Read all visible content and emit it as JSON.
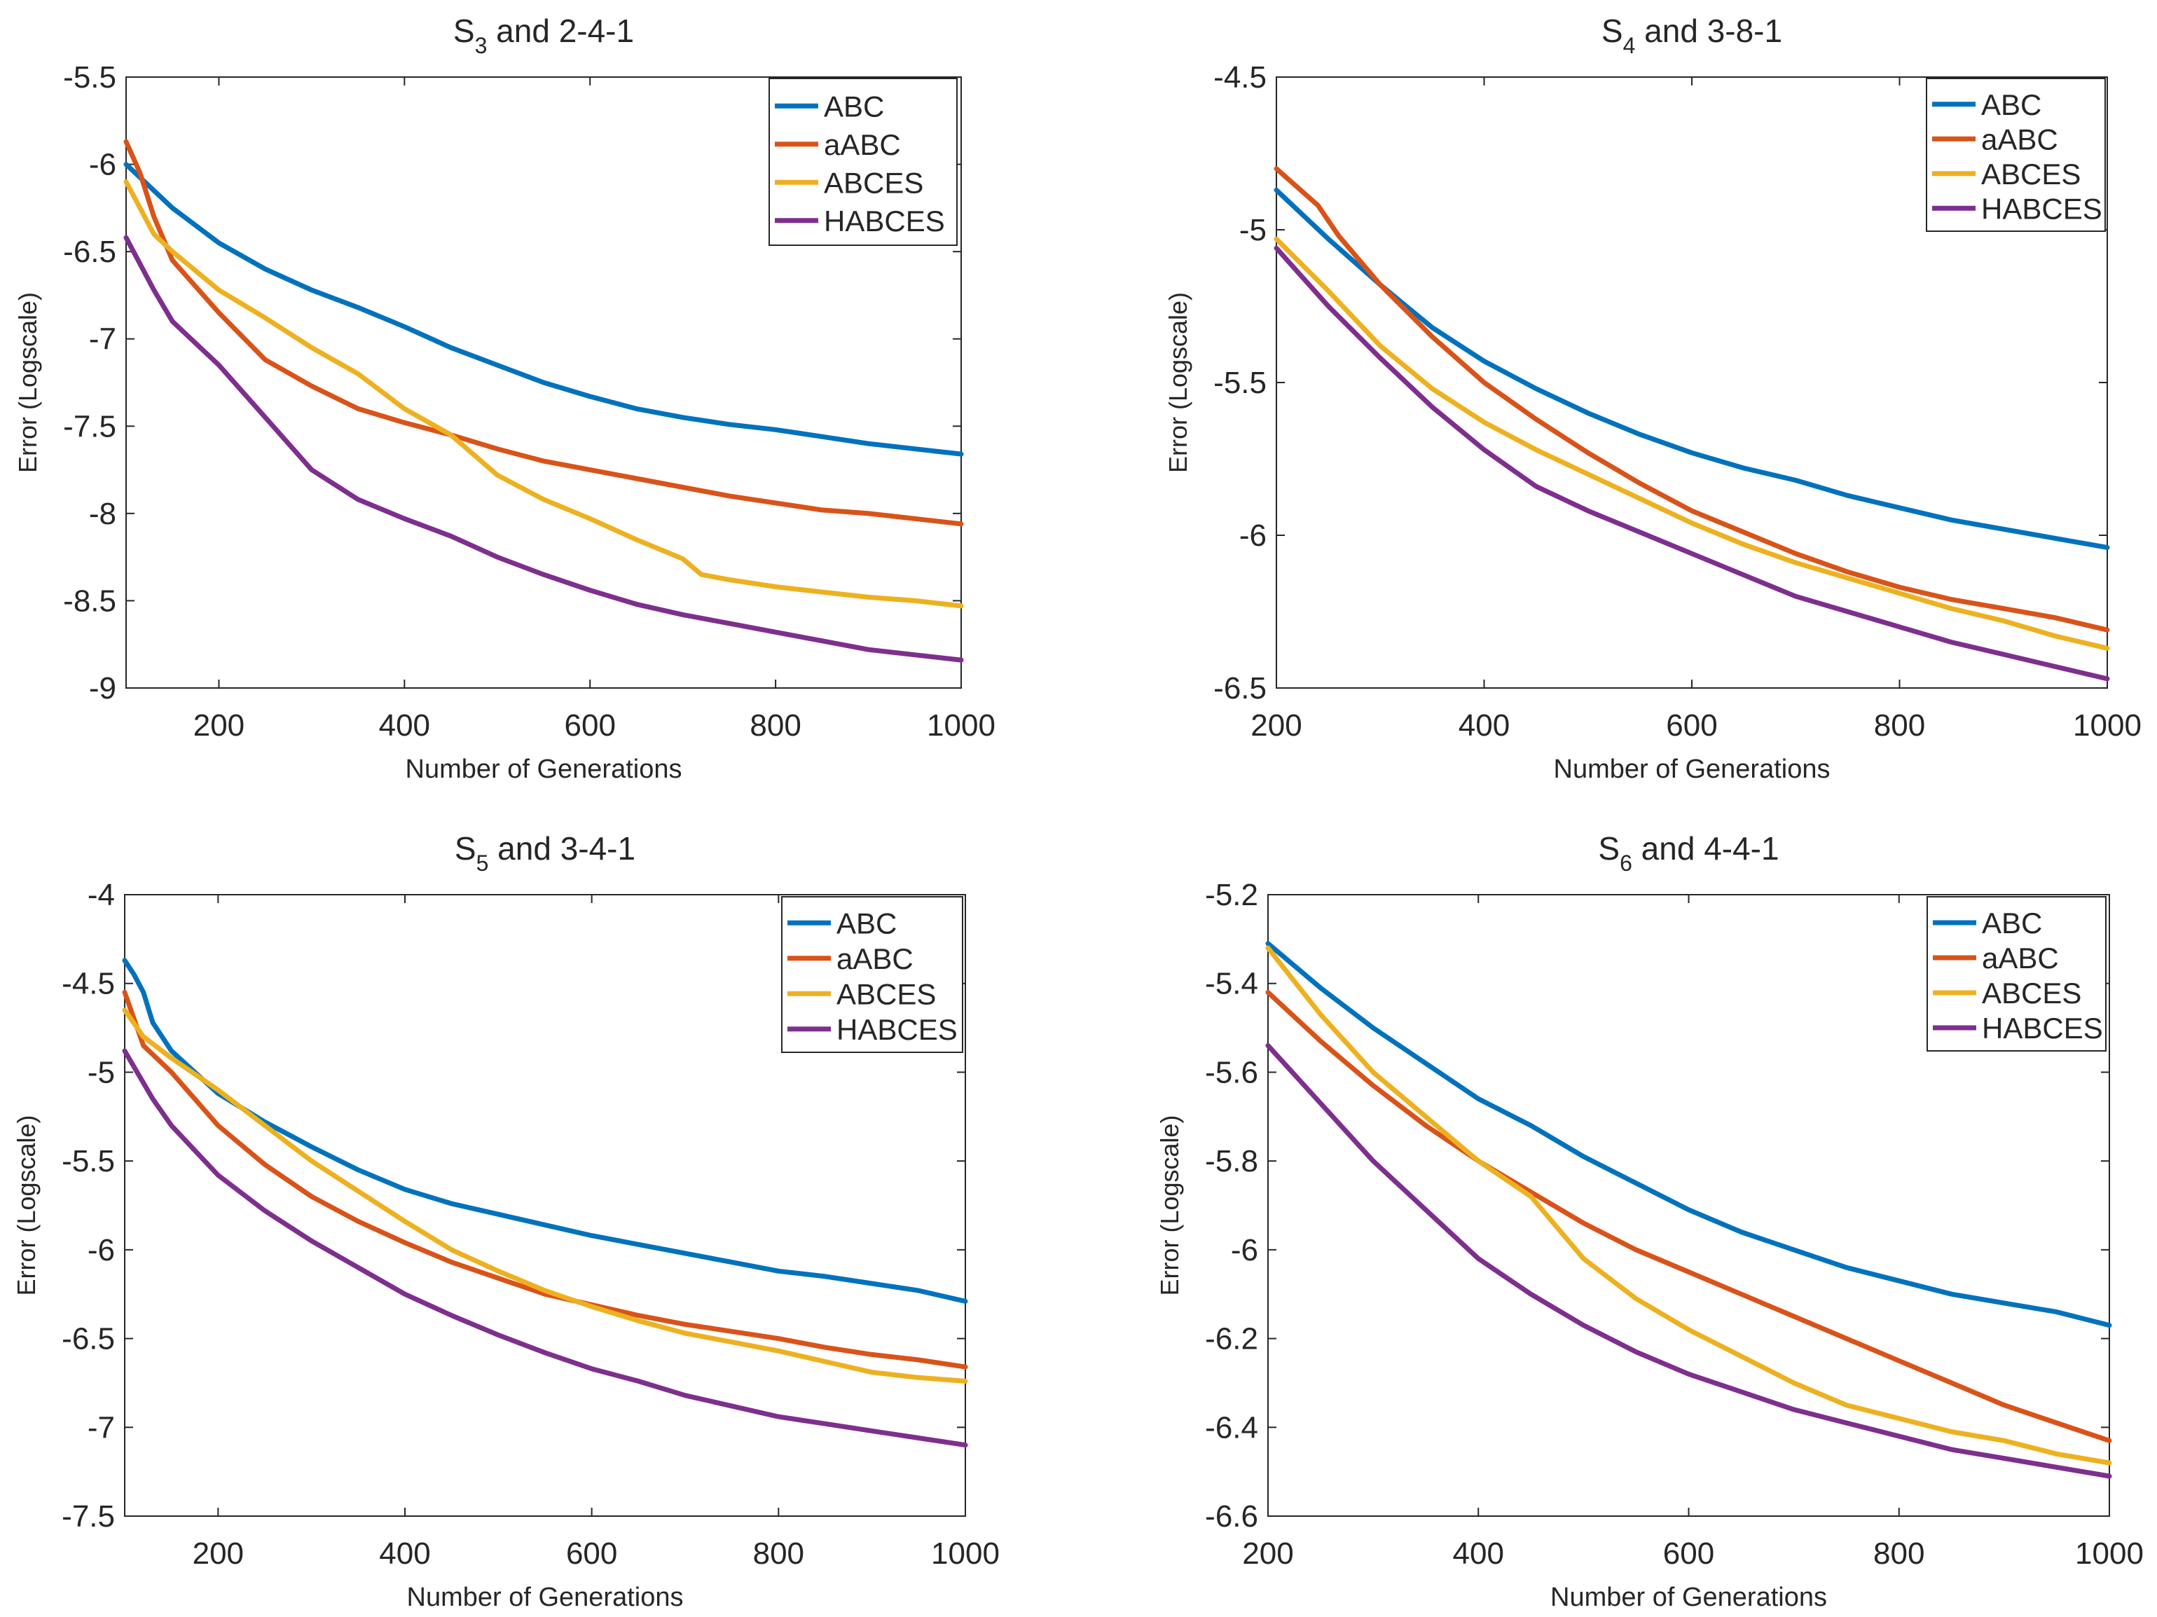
{
  "figure": {
    "description_free": true
  },
  "chart_data": [
    {
      "type": "line",
      "title": "S3 and 2-4-1",
      "title_main": "S",
      "title_sub": "3",
      "title_rest": " and 2-4-1",
      "xlabel": "Number of Generations",
      "ylabel": "Error (Logscale)",
      "xlim": [
        100,
        1000
      ],
      "ylim": [
        -9,
        -5.5
      ],
      "xticks": [
        200,
        400,
        600,
        800,
        1000
      ],
      "yticks": [
        -9,
        -8.5,
        -8,
        -7.5,
        -7,
        -6.5,
        -6,
        -5.5
      ],
      "xtick_labels": [
        "200",
        "400",
        "600",
        "800",
        "1000"
      ],
      "ytick_labels": [
        "-9",
        "-8.5",
        "-8",
        "-7.5",
        "-7",
        "-6.5",
        "-6",
        "-5.5"
      ],
      "legend_position": "top-right",
      "series": [
        {
          "name": "ABC",
          "color": "#0072BD",
          "x": [
            100,
            130,
            150,
            200,
            250,
            300,
            350,
            400,
            450,
            500,
            550,
            600,
            650,
            700,
            750,
            800,
            850,
            900,
            950,
            1000
          ],
          "y": [
            -6.0,
            -6.15,
            -6.25,
            -6.45,
            -6.6,
            -6.72,
            -6.82,
            -6.93,
            -7.05,
            -7.15,
            -7.25,
            -7.33,
            -7.4,
            -7.45,
            -7.49,
            -7.52,
            -7.56,
            -7.6,
            -7.63,
            -7.66
          ]
        },
        {
          "name": "aABC",
          "color": "#D95319",
          "x": [
            100,
            115,
            130,
            150,
            200,
            250,
            300,
            350,
            400,
            450,
            500,
            550,
            600,
            650,
            700,
            750,
            800,
            850,
            900,
            950,
            1000
          ],
          "y": [
            -5.87,
            -6.05,
            -6.3,
            -6.55,
            -6.85,
            -7.12,
            -7.27,
            -7.4,
            -7.48,
            -7.55,
            -7.63,
            -7.7,
            -7.75,
            -7.8,
            -7.85,
            -7.9,
            -7.94,
            -7.98,
            -8.0,
            -8.03,
            -8.06
          ]
        },
        {
          "name": "ABCES",
          "color": "#EDB120",
          "x": [
            100,
            130,
            150,
            200,
            250,
            300,
            350,
            400,
            450,
            500,
            550,
            600,
            650,
            700,
            720,
            750,
            800,
            850,
            900,
            950,
            1000
          ],
          "y": [
            -6.1,
            -6.4,
            -6.5,
            -6.72,
            -6.88,
            -7.05,
            -7.2,
            -7.4,
            -7.55,
            -7.78,
            -7.92,
            -8.03,
            -8.15,
            -8.26,
            -8.35,
            -8.38,
            -8.42,
            -8.45,
            -8.48,
            -8.5,
            -8.53
          ]
        },
        {
          "name": "HABCES",
          "color": "#7E2F8E",
          "x": [
            100,
            130,
            150,
            200,
            250,
            300,
            350,
            400,
            450,
            500,
            550,
            600,
            650,
            700,
            750,
            800,
            850,
            900,
            950,
            1000
          ],
          "y": [
            -6.42,
            -6.72,
            -6.9,
            -7.15,
            -7.45,
            -7.75,
            -7.92,
            -8.03,
            -8.13,
            -8.25,
            -8.35,
            -8.44,
            -8.52,
            -8.58,
            -8.63,
            -8.68,
            -8.73,
            -8.78,
            -8.81,
            -8.84
          ]
        }
      ]
    },
    {
      "type": "line",
      "title": "S4 and 3-8-1",
      "title_main": "S",
      "title_sub": "4",
      "title_rest": " and 3-8-1",
      "xlabel": "Number of Generations",
      "ylabel": "Error (Logscale)",
      "xlim": [
        200,
        1000
      ],
      "ylim": [
        -6.5,
        -4.5
      ],
      "xticks": [
        200,
        400,
        600,
        800,
        1000
      ],
      "yticks": [
        -6.5,
        -6,
        -5.5,
        -5,
        -4.5
      ],
      "xtick_labels": [
        "200",
        "400",
        "600",
        "800",
        "1000"
      ],
      "ytick_labels": [
        "-6.5",
        "-6",
        "-5.5",
        "-5",
        "-4.5"
      ],
      "legend_position": "top-right",
      "series": [
        {
          "name": "ABC",
          "color": "#0072BD",
          "x": [
            200,
            250,
            300,
            350,
            400,
            450,
            500,
            550,
            600,
            650,
            700,
            750,
            800,
            850,
            900,
            950,
            1000
          ],
          "y": [
            -4.87,
            -5.03,
            -5.18,
            -5.32,
            -5.43,
            -5.52,
            -5.6,
            -5.67,
            -5.73,
            -5.78,
            -5.82,
            -5.87,
            -5.91,
            -5.95,
            -5.98,
            -6.01,
            -6.04
          ]
        },
        {
          "name": "aABC",
          "color": "#D95319",
          "x": [
            200,
            220,
            240,
            260,
            300,
            350,
            400,
            450,
            500,
            550,
            600,
            650,
            700,
            750,
            800,
            850,
            900,
            950,
            1000
          ],
          "y": [
            -4.8,
            -4.86,
            -4.92,
            -5.02,
            -5.18,
            -5.35,
            -5.5,
            -5.62,
            -5.73,
            -5.83,
            -5.92,
            -5.99,
            -6.06,
            -6.12,
            -6.17,
            -6.21,
            -6.24,
            -6.27,
            -6.31
          ]
        },
        {
          "name": "ABCES",
          "color": "#EDB120",
          "x": [
            200,
            250,
            300,
            350,
            400,
            450,
            500,
            550,
            600,
            650,
            700,
            750,
            800,
            850,
            900,
            950,
            1000
          ],
          "y": [
            -5.03,
            -5.2,
            -5.38,
            -5.52,
            -5.63,
            -5.72,
            -5.8,
            -5.88,
            -5.96,
            -6.03,
            -6.09,
            -6.14,
            -6.19,
            -6.24,
            -6.28,
            -6.33,
            -6.37
          ]
        },
        {
          "name": "HABCES",
          "color": "#7E2F8E",
          "x": [
            200,
            250,
            300,
            350,
            400,
            450,
            500,
            550,
            600,
            650,
            700,
            750,
            800,
            850,
            900,
            950,
            1000
          ],
          "y": [
            -5.06,
            -5.25,
            -5.42,
            -5.58,
            -5.72,
            -5.84,
            -5.92,
            -5.99,
            -6.06,
            -6.13,
            -6.2,
            -6.25,
            -6.3,
            -6.35,
            -6.39,
            -6.43,
            -6.47
          ]
        }
      ]
    },
    {
      "type": "line",
      "title": "S5 and 3-4-1",
      "title_main": "S",
      "title_sub": "5",
      "title_rest": " and 3-4-1",
      "xlabel": "Number of Generations",
      "ylabel": "Error (Logscale)",
      "xlim": [
        100,
        1000
      ],
      "ylim": [
        -7.5,
        -4
      ],
      "xticks": [
        200,
        400,
        600,
        800,
        1000
      ],
      "yticks": [
        -7.5,
        -7,
        -6.5,
        -6,
        -5.5,
        -5,
        -4.5,
        -4
      ],
      "xtick_labels": [
        "200",
        "400",
        "600",
        "800",
        "1000"
      ],
      "ytick_labels": [
        "-7.5",
        "-7",
        "-6.5",
        "-6",
        "-5.5",
        "-5",
        "-4.5",
        "-4"
      ],
      "legend_position": "top-right",
      "series": [
        {
          "name": "ABC",
          "color": "#0072BD",
          "x": [
            100,
            110,
            120,
            130,
            150,
            200,
            250,
            300,
            350,
            400,
            450,
            500,
            550,
            600,
            650,
            700,
            750,
            800,
            850,
            900,
            950,
            1000
          ],
          "y": [
            -4.37,
            -4.45,
            -4.55,
            -4.72,
            -4.88,
            -5.12,
            -5.28,
            -5.42,
            -5.55,
            -5.66,
            -5.74,
            -5.8,
            -5.86,
            -5.92,
            -5.97,
            -6.02,
            -6.07,
            -6.12,
            -6.15,
            -6.19,
            -6.23,
            -6.29
          ]
        },
        {
          "name": "aABC",
          "color": "#D95319",
          "x": [
            100,
            120,
            150,
            200,
            250,
            300,
            350,
            400,
            450,
            500,
            550,
            600,
            650,
            700,
            750,
            800,
            850,
            900,
            950,
            1000
          ],
          "y": [
            -4.55,
            -4.85,
            -5.0,
            -5.3,
            -5.52,
            -5.7,
            -5.84,
            -5.96,
            -6.07,
            -6.16,
            -6.25,
            -6.31,
            -6.37,
            -6.42,
            -6.46,
            -6.5,
            -6.55,
            -6.59,
            -6.62,
            -6.66
          ]
        },
        {
          "name": "ABCES",
          "color": "#EDB120",
          "x": [
            100,
            120,
            150,
            200,
            250,
            300,
            350,
            400,
            450,
            500,
            550,
            600,
            650,
            700,
            750,
            800,
            850,
            900,
            950,
            1000
          ],
          "y": [
            -4.65,
            -4.8,
            -4.92,
            -5.1,
            -5.3,
            -5.5,
            -5.67,
            -5.84,
            -6.0,
            -6.12,
            -6.23,
            -6.32,
            -6.4,
            -6.47,
            -6.52,
            -6.57,
            -6.63,
            -6.69,
            -6.72,
            -6.74
          ]
        },
        {
          "name": "HABCES",
          "color": "#7E2F8E",
          "x": [
            100,
            130,
            150,
            200,
            250,
            300,
            350,
            400,
            450,
            500,
            550,
            600,
            650,
            700,
            750,
            800,
            850,
            900,
            950,
            1000
          ],
          "y": [
            -4.88,
            -5.15,
            -5.3,
            -5.58,
            -5.78,
            -5.95,
            -6.1,
            -6.25,
            -6.37,
            -6.48,
            -6.58,
            -6.67,
            -6.74,
            -6.82,
            -6.88,
            -6.94,
            -6.98,
            -7.02,
            -7.06,
            -7.1
          ]
        }
      ]
    },
    {
      "type": "line",
      "title": "S6 and 4-4-1",
      "title_main": "S",
      "title_sub": "6",
      "title_rest": " and 4-4-1",
      "xlabel": "Number of Generations",
      "ylabel": "Error (Logscale)",
      "xlim": [
        200,
        1000
      ],
      "ylim": [
        -6.6,
        -5.2
      ],
      "xticks": [
        200,
        400,
        600,
        800,
        1000
      ],
      "yticks": [
        -6.6,
        -6.4,
        -6.2,
        -6,
        -5.8,
        -5.6,
        -5.4,
        -5.2
      ],
      "xtick_labels": [
        "200",
        "400",
        "600",
        "800",
        "1000"
      ],
      "ytick_labels": [
        "-6.6",
        "-6.4",
        "-6.2",
        "-6",
        "-5.8",
        "-5.6",
        "-5.4",
        "-5.2"
      ],
      "legend_position": "top-right",
      "series": [
        {
          "name": "ABC",
          "color": "#0072BD",
          "x": [
            200,
            250,
            300,
            350,
            400,
            450,
            500,
            550,
            600,
            650,
            700,
            750,
            800,
            850,
            900,
            950,
            1000
          ],
          "y": [
            -5.31,
            -5.41,
            -5.5,
            -5.58,
            -5.66,
            -5.72,
            -5.79,
            -5.85,
            -5.91,
            -5.96,
            -6.0,
            -6.04,
            -6.07,
            -6.1,
            -6.12,
            -6.14,
            -6.17
          ]
        },
        {
          "name": "aABC",
          "color": "#D95319",
          "x": [
            200,
            250,
            300,
            350,
            400,
            450,
            500,
            550,
            600,
            650,
            700,
            750,
            800,
            850,
            900,
            950,
            1000
          ],
          "y": [
            -5.42,
            -5.53,
            -5.63,
            -5.72,
            -5.8,
            -5.87,
            -5.94,
            -6.0,
            -6.05,
            -6.1,
            -6.15,
            -6.2,
            -6.25,
            -6.3,
            -6.35,
            -6.39,
            -6.43
          ]
        },
        {
          "name": "ABCES",
          "color": "#EDB120",
          "x": [
            200,
            250,
            300,
            350,
            400,
            450,
            500,
            550,
            600,
            650,
            700,
            750,
            800,
            850,
            900,
            950,
            1000
          ],
          "y": [
            -5.32,
            -5.47,
            -5.6,
            -5.7,
            -5.8,
            -5.88,
            -6.02,
            -6.11,
            -6.18,
            -6.24,
            -6.3,
            -6.35,
            -6.38,
            -6.41,
            -6.43,
            -6.46,
            -6.48
          ]
        },
        {
          "name": "HABCES",
          "color": "#7E2F8E",
          "x": [
            200,
            250,
            300,
            350,
            400,
            450,
            500,
            550,
            600,
            650,
            700,
            750,
            800,
            850,
            900,
            950,
            1000
          ],
          "y": [
            -5.54,
            -5.67,
            -5.8,
            -5.91,
            -6.02,
            -6.1,
            -6.17,
            -6.23,
            -6.28,
            -6.32,
            -6.36,
            -6.39,
            -6.42,
            -6.45,
            -6.47,
            -6.49,
            -6.51
          ]
        }
      ]
    }
  ]
}
